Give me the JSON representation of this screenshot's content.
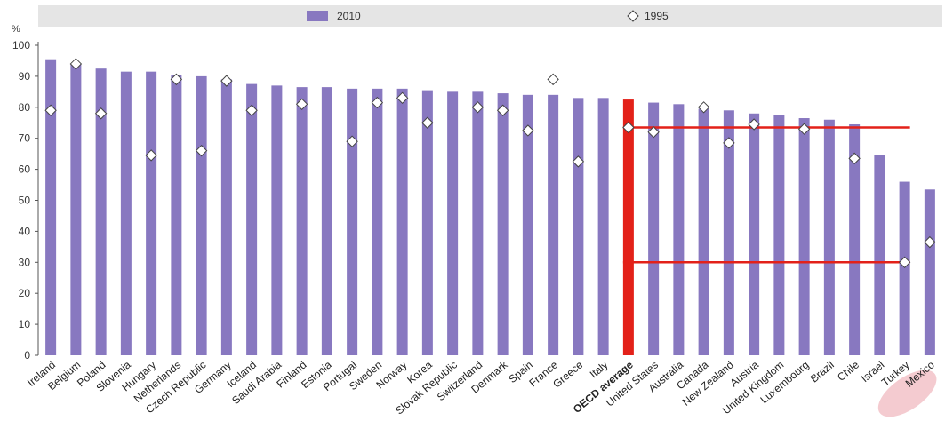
{
  "chart_data": {
    "type": "bar",
    "unit_label": "%",
    "ylim": [
      0,
      100
    ],
    "yticks": [
      0,
      10,
      20,
      30,
      40,
      50,
      60,
      70,
      80,
      90,
      100
    ],
    "grid": false,
    "legend_position": "top",
    "categories": [
      "Ireland",
      "Belgium",
      "Poland",
      "Slovenia",
      "Hungary",
      "Netherlands",
      "Czech Republic",
      "Germany",
      "Iceland",
      "Saudi Arabia",
      "Finland",
      "Estonia",
      "Portugal",
      "Sweden",
      "Norway",
      "Korea",
      "Slovak Republic",
      "Switzerland",
      "Denmark",
      "Spain",
      "France",
      "Greece",
      "Italy",
      "OECD average",
      "United States",
      "Australia",
      "Canada",
      "New Zealand",
      "Austria",
      "United Kingdom",
      "Luxembourg",
      "Brazil",
      "Chile",
      "Israel",
      "Turkey",
      "Mexico"
    ],
    "highlight_category": "OECD average",
    "circled_category": "Turkey",
    "series": [
      {
        "name": "2010",
        "kind": "bar",
        "color": "#8878C0",
        "values": [
          95.5,
          94,
          92.5,
          91.5,
          91.5,
          90.5,
          90,
          89,
          87.5,
          87,
          86.5,
          86.5,
          86,
          86,
          86,
          85.5,
          85,
          85,
          84.5,
          84,
          84,
          83,
          83,
          82.5,
          81.5,
          81,
          79.5,
          79,
          78,
          77.5,
          76.5,
          76,
          74.5,
          64.5,
          56,
          53.5
        ]
      },
      {
        "name": "1995",
        "kind": "marker",
        "color": "#ffffff",
        "values": [
          79,
          94,
          78,
          null,
          64.5,
          89,
          66,
          88.5,
          79,
          null,
          81,
          null,
          69,
          81.5,
          83,
          75,
          null,
          80,
          79,
          72.5,
          89,
          62.5,
          null,
          73.5,
          72,
          null,
          80,
          68.5,
          74.5,
          null,
          73,
          null,
          63.5,
          null,
          30,
          36.5
        ]
      }
    ],
    "reference_lines": [
      {
        "from": "OECD average",
        "to": "Turkey",
        "value": 73.5,
        "color": "#E32119"
      },
      {
        "from": "OECD average",
        "to": "Turkey",
        "value": 30,
        "color": "#E32119"
      }
    ]
  }
}
